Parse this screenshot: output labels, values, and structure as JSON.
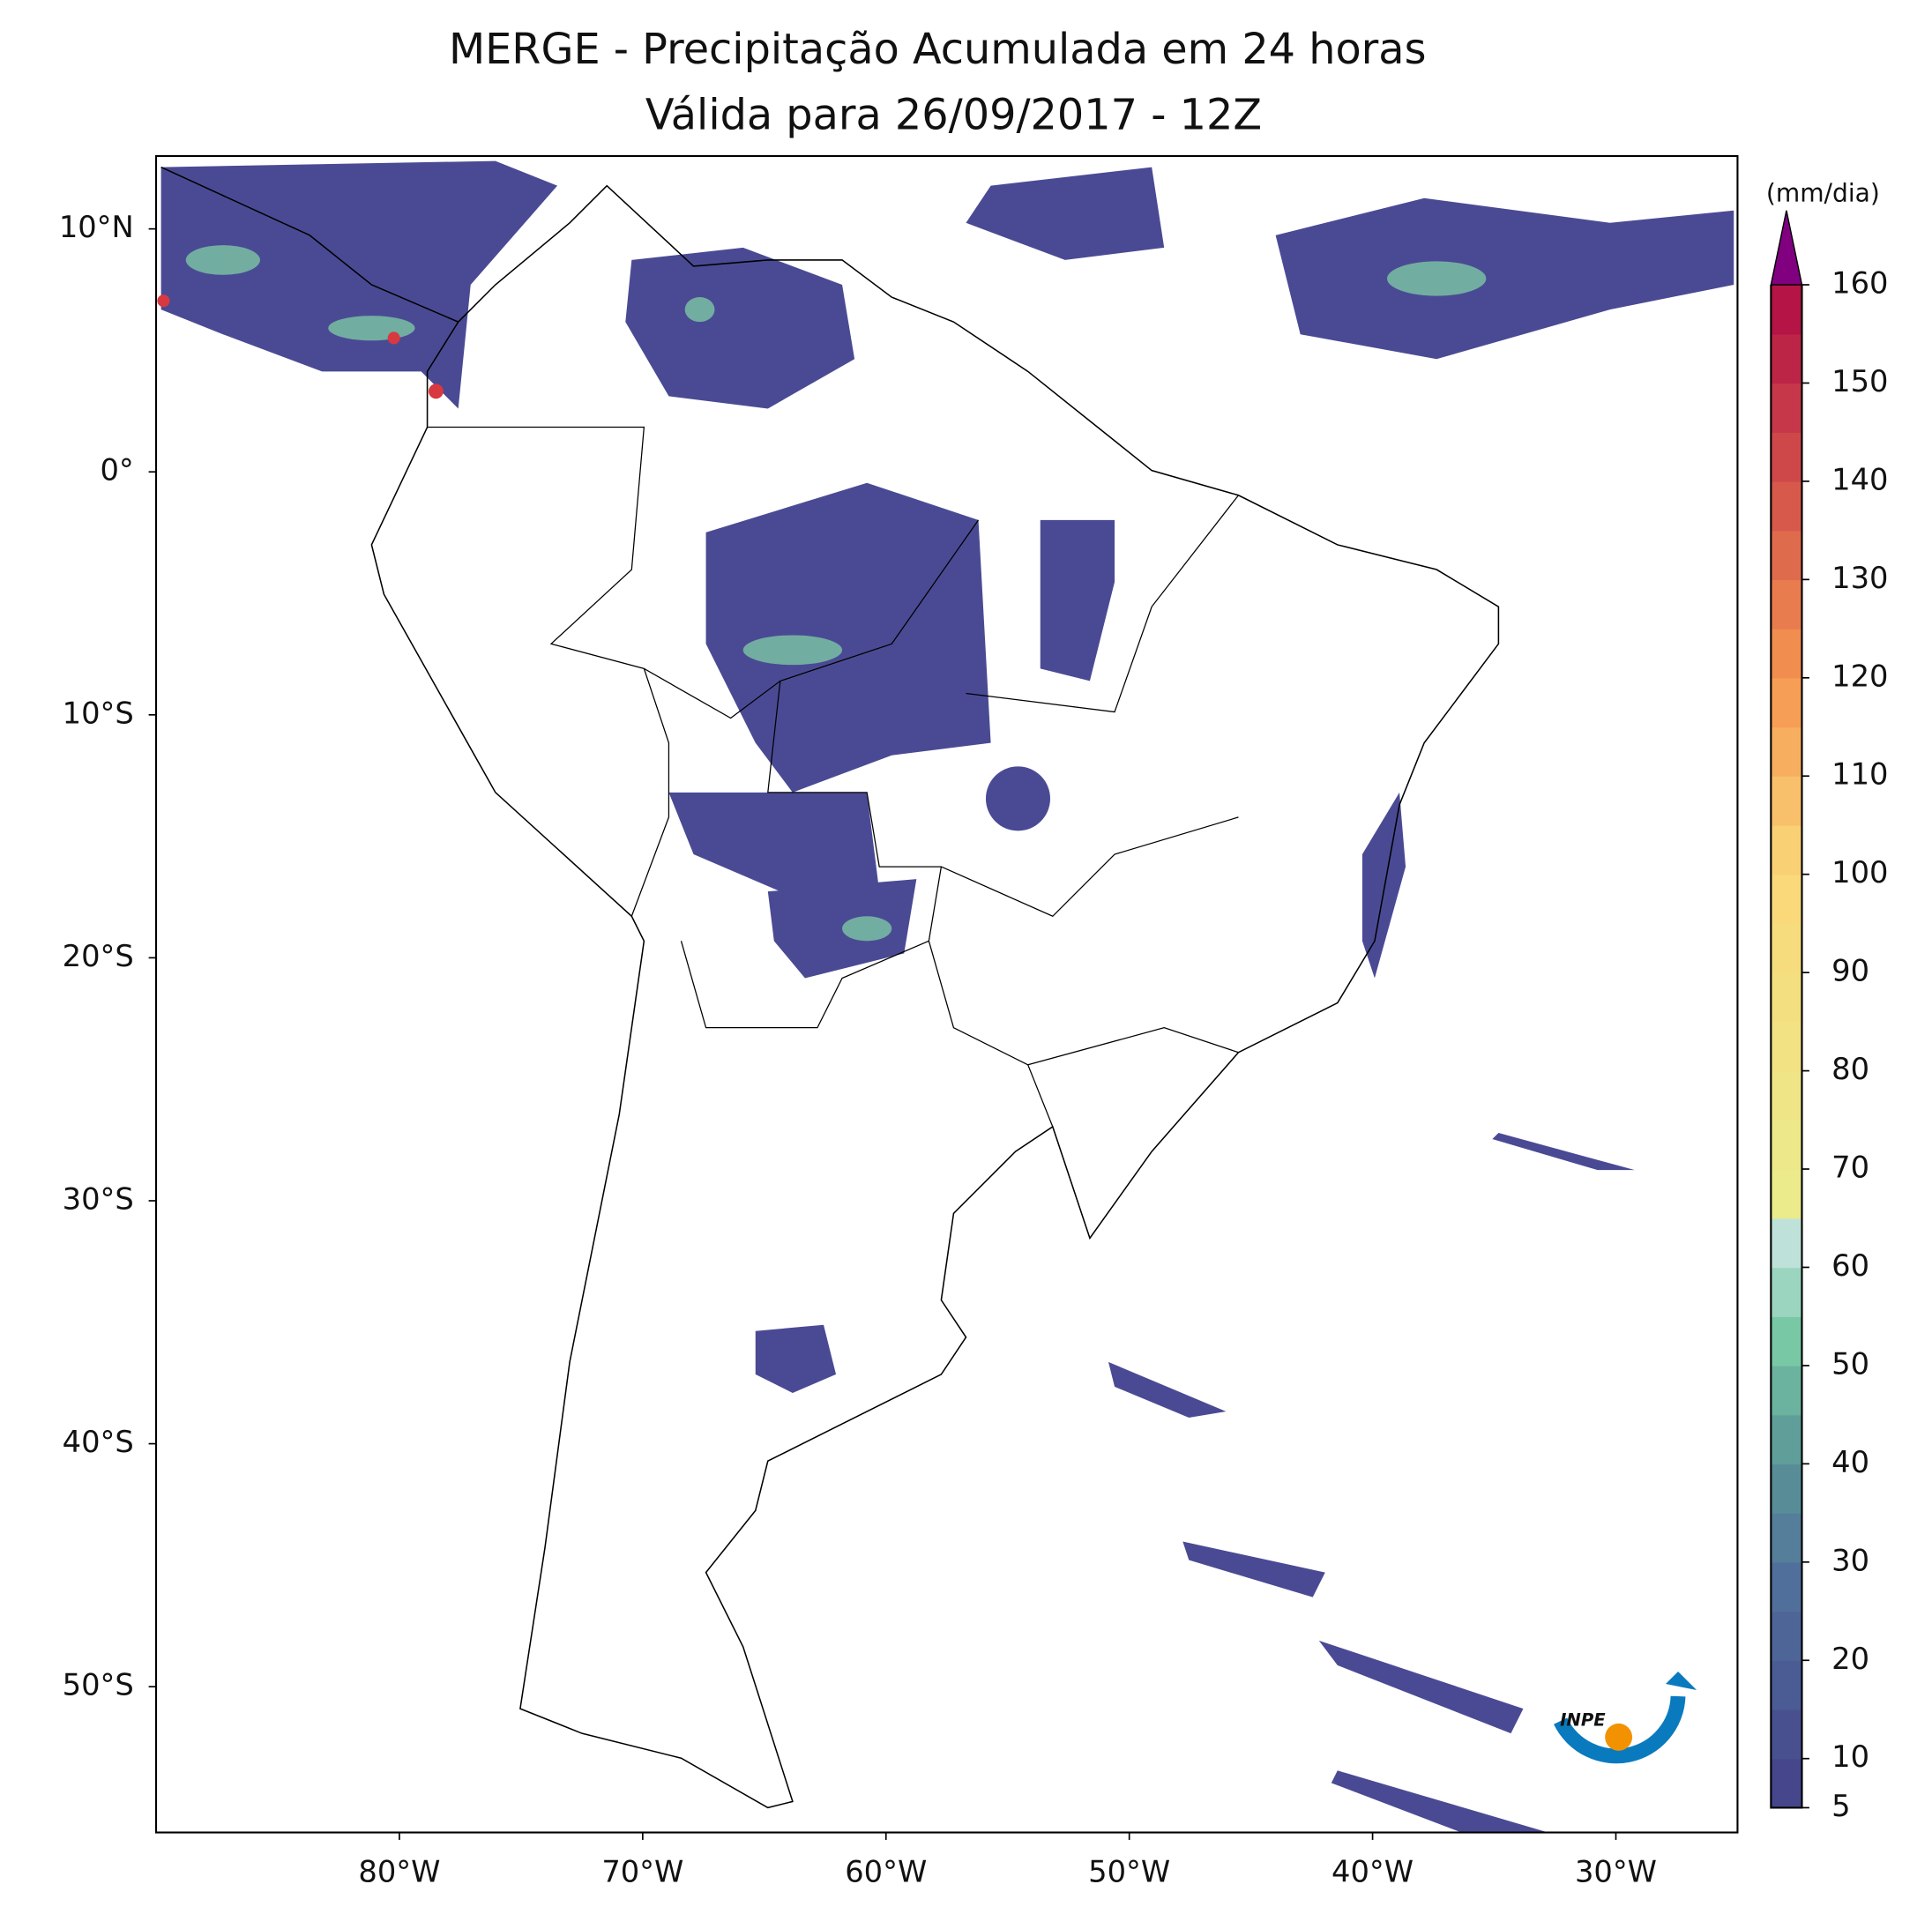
{
  "header": {
    "title": "MERGE - Precipitação Acumulada em 24 horas",
    "subtitle": "Válida para 26/09/2017 - 12Z"
  },
  "map": {
    "xlim": [
      -90,
      -25
    ],
    "ylim": [
      -56,
      13
    ],
    "yticks": [
      {
        "value": 10,
        "label": "10°N"
      },
      {
        "value": 0,
        "label": "0°"
      },
      {
        "value": -10,
        "label": "10°S"
      },
      {
        "value": -20,
        "label": "20°S"
      },
      {
        "value": -30,
        "label": "30°S"
      },
      {
        "value": -40,
        "label": "40°S"
      },
      {
        "value": -50,
        "label": "50°S"
      }
    ],
    "xticks": [
      {
        "value": -80,
        "label": "80°W"
      },
      {
        "value": -70,
        "label": "70°W"
      },
      {
        "value": -60,
        "label": "60°W"
      },
      {
        "value": -50,
        "label": "50°W"
      },
      {
        "value": -40,
        "label": "40°W"
      },
      {
        "value": -30,
        "label": "30°W"
      }
    ]
  },
  "colorbar": {
    "label": "(mm/dia)",
    "lim": [
      5,
      160
    ],
    "ticks": [
      5,
      10,
      20,
      30,
      40,
      50,
      60,
      70,
      80,
      90,
      100,
      110,
      120,
      130,
      140,
      150,
      160
    ]
  },
  "logo": {
    "text": "INPE"
  }
}
